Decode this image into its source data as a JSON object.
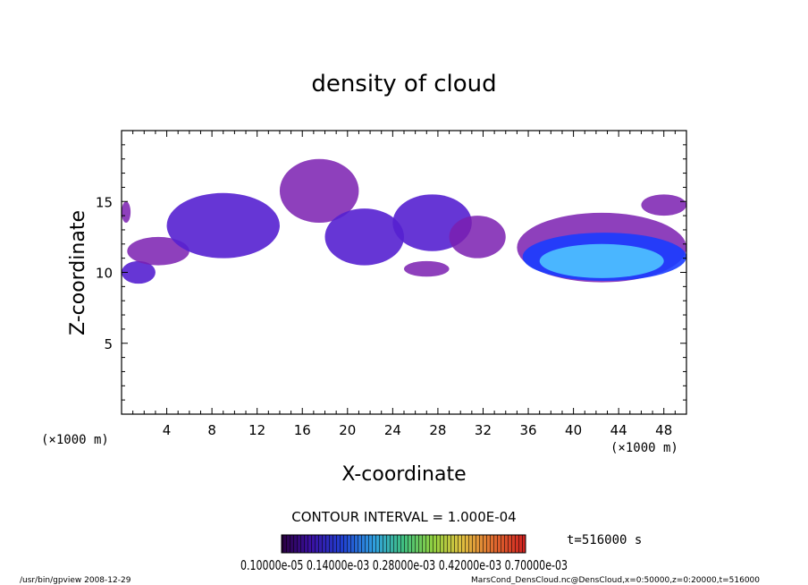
{
  "chart_data": {
    "type": "heatmap",
    "title": "density of cloud",
    "xlabel": "X-coordinate",
    "ylabel": "Z-coordinate",
    "x_unit": "(×1000 m)",
    "y_unit": "(×1000 m)",
    "xlim": [
      0,
      50
    ],
    "ylim": [
      0,
      20
    ],
    "x_ticks": [
      "4",
      "8",
      "12",
      "16",
      "20",
      "24",
      "28",
      "32",
      "36",
      "40",
      "44",
      "48"
    ],
    "y_ticks": [
      "5",
      "10",
      "15"
    ],
    "grid": false,
    "contour_interval": "CONTOUR INTERVAL = 1.000E-04",
    "colorbar_labels": "0.10000e-05 0.14000e-03 0.28000e-03 0.42000e-03 0.70000e-03",
    "time_label": "t=516000 s",
    "colors": {
      "low": "#7a1fb0",
      "mid": "#5520d0",
      "high": "#1a3cff",
      "peak": "#4fc3ff"
    },
    "cloud_regions": [
      {
        "x": [
          0,
          3
        ],
        "z": [
          9.2,
          10.8
        ],
        "level": "mid"
      },
      {
        "x": [
          0,
          0.8
        ],
        "z": [
          13.5,
          15.0
        ],
        "level": "low"
      },
      {
        "x": [
          0.5,
          6
        ],
        "z": [
          10.5,
          12.5
        ],
        "level": "low"
      },
      {
        "x": [
          4,
          14
        ],
        "z": [
          11.0,
          15.6
        ],
        "level": "mid"
      },
      {
        "x": [
          14,
          21
        ],
        "z": [
          13.5,
          18.0
        ],
        "level": "low"
      },
      {
        "x": [
          18,
          25
        ],
        "z": [
          10.5,
          14.5
        ],
        "level": "mid"
      },
      {
        "x": [
          24,
          31
        ],
        "z": [
          11.5,
          15.5
        ],
        "level": "mid"
      },
      {
        "x": [
          25,
          29
        ],
        "z": [
          9.7,
          10.8
        ],
        "level": "low"
      },
      {
        "x": [
          29,
          34
        ],
        "z": [
          11.0,
          14.0
        ],
        "level": "low"
      },
      {
        "x": [
          35,
          50
        ],
        "z": [
          9.3,
          14.2
        ],
        "level": "low"
      },
      {
        "x": [
          35.5,
          50
        ],
        "z": [
          9.4,
          12.8
        ],
        "level": "high"
      },
      {
        "x": [
          37,
          48
        ],
        "z": [
          9.6,
          12.0
        ],
        "level": "peak"
      },
      {
        "x": [
          46,
          50
        ],
        "z": [
          14.0,
          15.5
        ],
        "level": "low"
      }
    ]
  },
  "footer": {
    "left": "/usr/bin/gpview  2008-12-29",
    "right": "MarsCond_DensCloud.nc@DensCloud,x=0:50000,z=0:20000,t=516000"
  }
}
